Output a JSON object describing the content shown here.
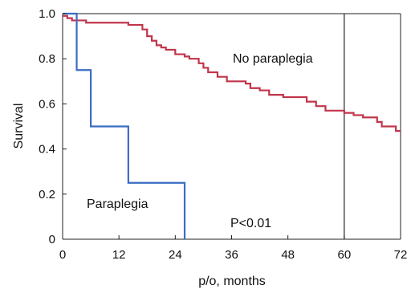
{
  "chart_data": {
    "type": "line",
    "xlabel": "p/o, months",
    "ylabel": "Survival",
    "xlim": [
      0,
      72
    ],
    "ylim": [
      0,
      1.0
    ],
    "x_ticks": [
      0,
      12,
      24,
      36,
      48,
      60,
      72
    ],
    "y_ticks": [
      0,
      0.2,
      0.4,
      0.6,
      0.8,
      1.0
    ],
    "y_tick_labels": [
      "0",
      "0.2",
      "0.4",
      "0.6",
      "0.8",
      "1.0"
    ],
    "grid": false,
    "reference_line_x": 60,
    "annotations": [
      "No paraplegia",
      "Paraplegia",
      "P<0.01"
    ],
    "series": [
      {
        "name": "No paraplegia",
        "color": "#c0354a",
        "step": true,
        "x": [
          0,
          1,
          2,
          3,
          5,
          10,
          14,
          17,
          18,
          19,
          20,
          21,
          22,
          24,
          26,
          27,
          29,
          30,
          31,
          33,
          35,
          39,
          40,
          42,
          44,
          47,
          52,
          54,
          56,
          60,
          62,
          64,
          67,
          68,
          71,
          72
        ],
        "y": [
          0.99,
          0.98,
          0.97,
          0.97,
          0.96,
          0.96,
          0.95,
          0.93,
          0.9,
          0.88,
          0.86,
          0.85,
          0.84,
          0.82,
          0.81,
          0.8,
          0.78,
          0.76,
          0.74,
          0.72,
          0.7,
          0.69,
          0.67,
          0.66,
          0.64,
          0.63,
          0.61,
          0.59,
          0.57,
          0.56,
          0.55,
          0.54,
          0.52,
          0.5,
          0.48,
          0.48
        ]
      },
      {
        "name": "Paraplegia",
        "color": "#3b6cc4",
        "step": true,
        "x": [
          0,
          3,
          6,
          14,
          26
        ],
        "y": [
          1.0,
          0.75,
          0.5,
          0.25,
          0.0
        ]
      }
    ]
  }
}
